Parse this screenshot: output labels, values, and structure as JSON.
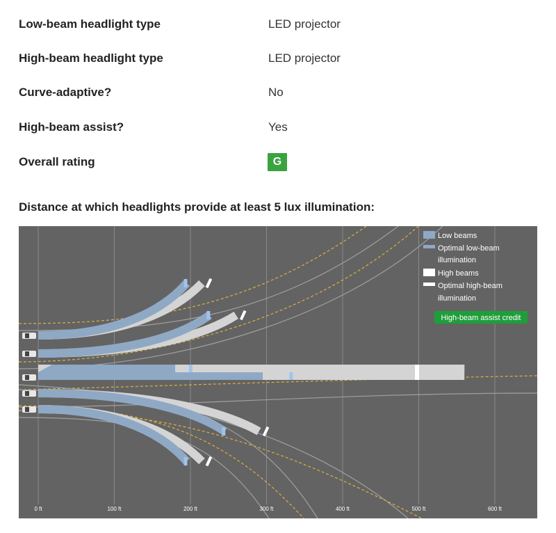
{
  "specs": [
    {
      "label": "Low-beam headlight type",
      "value": "LED projector"
    },
    {
      "label": "High-beam headlight type",
      "value": "LED projector"
    },
    {
      "label": "Curve-adaptive?",
      "value": "No"
    },
    {
      "label": "High-beam assist?",
      "value": "Yes"
    },
    {
      "label": "Overall rating",
      "value": "G"
    }
  ],
  "colors": {
    "rating_good": "#3aa33f",
    "chart_bg": "#636363",
    "low_beam": "#8fa9c5",
    "optimal_low_beam": "#9fc3ee",
    "high_beam": "#d4d4d4",
    "optimal_high_beam": "#ffffff",
    "lane_line": "#e0b040",
    "assist_credit": "#1e9e3a"
  },
  "chart": {
    "title": "Distance at which headlights provide at least 5 lux illumination:",
    "legend": {
      "low_beams": "Low beams",
      "optimal_low_line1": "Optimal low-beam",
      "optimal_low_line2": "illumination",
      "high_beams": "High beams",
      "optimal_high_line1": "Optimal high-beam",
      "optimal_high_line2": "illumination",
      "assist_badge": "High-beam assist credit"
    },
    "ticks": [
      "0 ft",
      "100 ft",
      "200 ft",
      "300 ft",
      "400 ft",
      "500 ft",
      "600 ft"
    ]
  },
  "chart_data": {
    "type": "bar",
    "title": "Distance at which headlights provide at least 5 lux illumination:",
    "xlabel": "",
    "ylabel": "",
    "x_unit": "ft",
    "xlim": [
      0,
      650
    ],
    "categories": [
      "Sharp left curve",
      "Gradual left curve",
      "Straightaway",
      "Gradual right curve",
      "Sharp right curve"
    ],
    "series": [
      {
        "name": "Low beams",
        "values": [
          195,
          225,
          295,
          245,
          195
        ]
      },
      {
        "name": "High beams",
        "values": [
          215,
          260,
          560,
          290,
          215
        ]
      }
    ],
    "straightaway_optimal_low_beam_ft": 330,
    "straightaway_optimal_high_beam_ft": 495,
    "high_beam_assist_credit_ft": 180
  }
}
